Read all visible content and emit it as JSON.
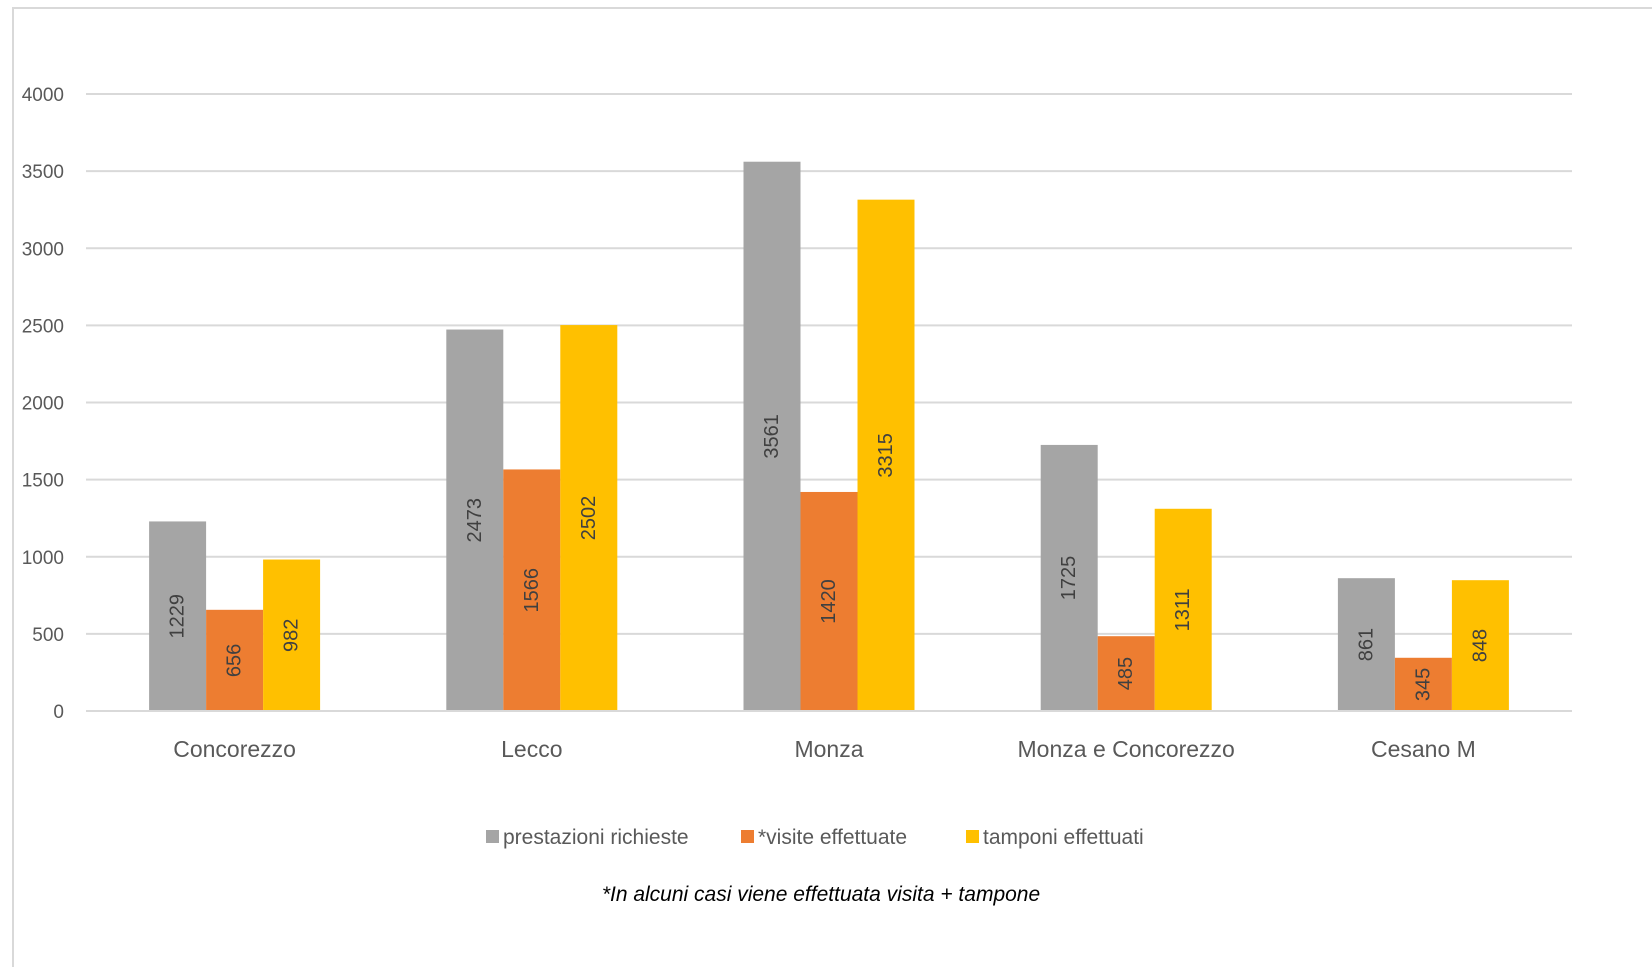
{
  "chart_data": {
    "type": "bar",
    "categories": [
      "Concorezzo",
      "Lecco",
      "Monza",
      "Monza e Concorezzo",
      "Cesano M"
    ],
    "series": [
      {
        "name": "prestazioni richieste",
        "values": [
          1229,
          2473,
          3561,
          1725,
          861
        ],
        "color": "#a5a5a5"
      },
      {
        "name": "*visite effettuate",
        "values": [
          656,
          1566,
          1420,
          485,
          345
        ],
        "color": "#ed7d31"
      },
      {
        "name": "tamponi effettuati",
        "values": [
          982,
          2502,
          3315,
          1311,
          848
        ],
        "color": "#ffc000"
      }
    ],
    "ylim": [
      0,
      4000
    ],
    "yticks": [
      0,
      500,
      1000,
      1500,
      2000,
      2500,
      3000,
      3500,
      4000
    ],
    "grid": true,
    "legend_position": "bottom",
    "data_labels": true,
    "data_label_orientation": "vertical",
    "footnote": "*In alcuni casi viene effettuata visita + tampone"
  }
}
